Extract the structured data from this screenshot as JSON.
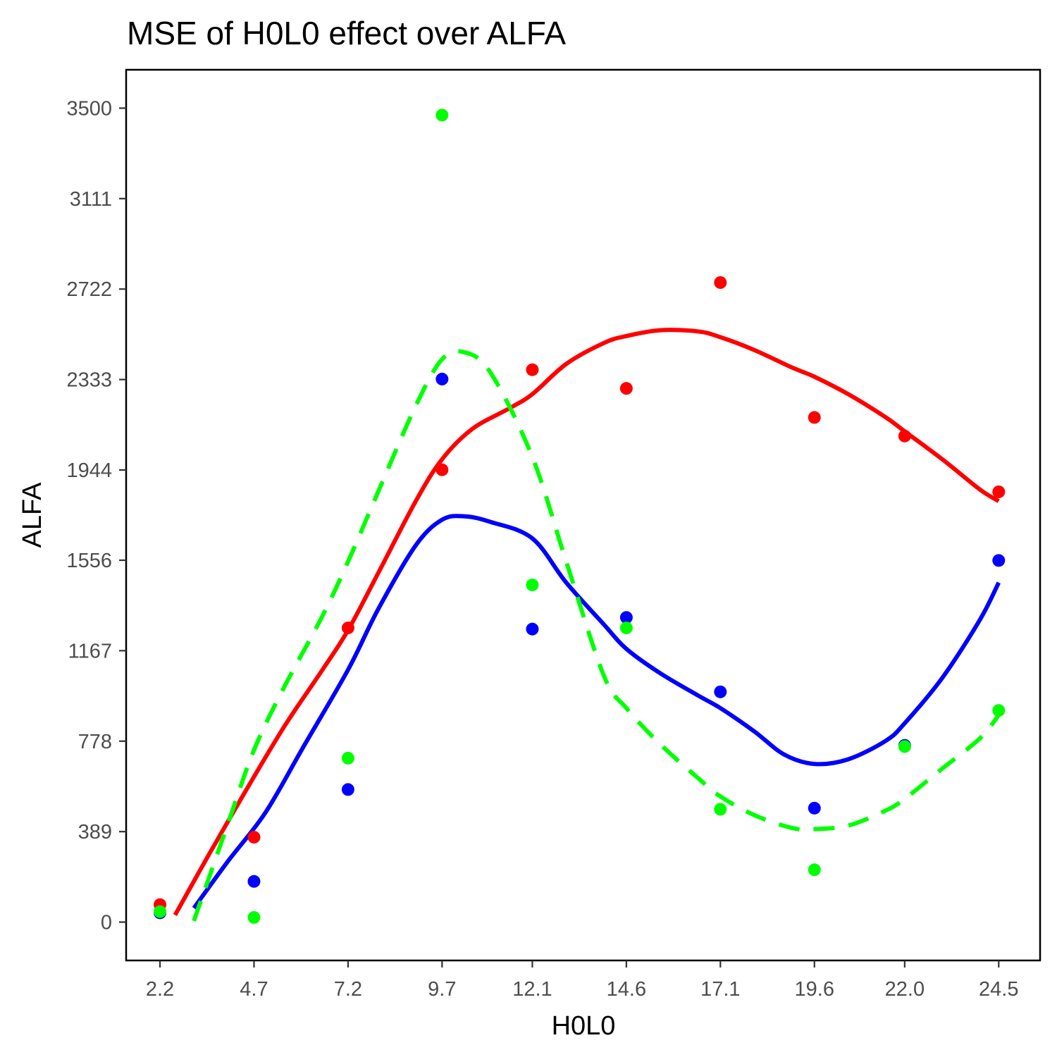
{
  "chart_data": {
    "type": "scatter",
    "title": "MSE of H0L0 effect over  ALFA",
    "xlabel": "H0L0",
    "ylabel": "ALFA",
    "x_ticks": [
      "2.2",
      "4.7",
      "7.2",
      "9.7",
      "12.1",
      "14.6",
      "17.1",
      "19.6",
      "22.0",
      "24.5"
    ],
    "y_ticks": [
      "0",
      "389",
      "778",
      "1167",
      "1556",
      "1944",
      "2333",
      "2722",
      "3111",
      "3500"
    ],
    "xlim": [
      1.3,
      25.6
    ],
    "ylim": [
      -165,
      3665
    ],
    "grid": false,
    "legend": "none",
    "x": [
      2.2,
      4.7,
      7.2,
      9.7,
      12.1,
      14.6,
      17.1,
      19.6,
      22.0,
      24.5
    ],
    "series": [
      {
        "color": "#ff0000",
        "line_style": "solid",
        "values": [
          75,
          365,
          1265,
          1945,
          2375,
          2295,
          2750,
          2170,
          2090,
          1850
        ],
        "smooth_curve": {
          "x": [
            2.6,
            3.5,
            4.5,
            5.5,
            6.5,
            7.2,
            8.0,
            9.0,
            9.7,
            10.5,
            11.5,
            12.1,
            13.0,
            14.0,
            14.6,
            15.5,
            16.5,
            17.1,
            18.0,
            19.0,
            19.6,
            20.5,
            21.5,
            22.0,
            23.0,
            24.0,
            24.5
          ],
          "values": [
            30,
            290,
            570,
            840,
            1080,
            1255,
            1500,
            1810,
            1990,
            2120,
            2210,
            2270,
            2400,
            2490,
            2520,
            2545,
            2540,
            2515,
            2460,
            2385,
            2345,
            2270,
            2170,
            2110,
            1990,
            1860,
            1810
          ]
        }
      },
      {
        "color": "#0000ff",
        "line_style": "solid",
        "values": [
          40,
          175,
          570,
          2335,
          1260,
          1310,
          990,
          490,
          760,
          1555
        ],
        "smooth_curve": {
          "x": [
            3.1,
            4.0,
            5.0,
            6.0,
            7.2,
            8.0,
            9.0,
            9.7,
            10.3,
            11.0,
            12.1,
            13.0,
            14.0,
            14.6,
            15.5,
            16.5,
            17.1,
            18.0,
            18.8,
            19.6,
            20.5,
            21.5,
            22.0,
            23.0,
            24.0,
            24.5
          ],
          "values": [
            60,
            260,
            470,
            750,
            1085,
            1345,
            1620,
            1730,
            1745,
            1720,
            1650,
            1460,
            1280,
            1175,
            1070,
            975,
            920,
            820,
            720,
            680,
            700,
            780,
            855,
            1050,
            1300,
            1460
          ]
        }
      },
      {
        "color": "#00ff00",
        "line_style": "dashed",
        "values": [
          45,
          20,
          705,
          3470,
          1450,
          1265,
          485,
          225,
          755,
          910
        ],
        "smooth_curve": {
          "x": [
            3.1,
            4.0,
            4.7,
            5.5,
            6.5,
            7.2,
            8.0,
            9.0,
            9.7,
            10.3,
            11.0,
            12.1,
            13.0,
            14.0,
            14.6,
            15.5,
            16.5,
            17.1,
            18.0,
            19.0,
            19.6,
            20.5,
            21.5,
            22.0,
            23.0,
            24.0,
            24.5
          ],
          "values": [
            5,
            420,
            740,
            1010,
            1310,
            1550,
            1850,
            2220,
            2420,
            2450,
            2360,
            2000,
            1550,
            1060,
            920,
            765,
            620,
            540,
            460,
            405,
            400,
            415,
            480,
            530,
            660,
            790,
            890
          ]
        }
      }
    ]
  }
}
